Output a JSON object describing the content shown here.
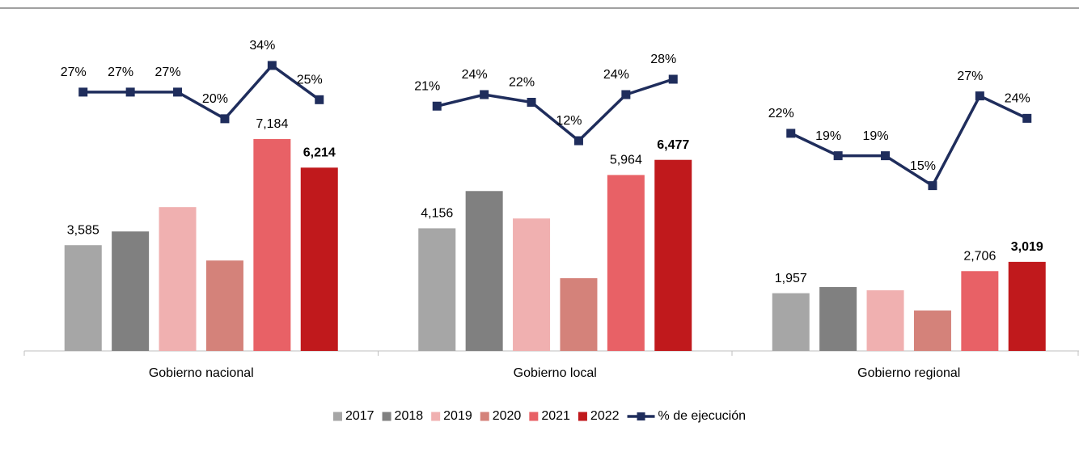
{
  "chart_data": {
    "type": "bar",
    "categories": [
      "Gobierno nacional",
      "Gobierno local",
      "Gobierno regional"
    ],
    "ylim": [
      0,
      10800
    ],
    "y2lim": [
      [
        -41,
        42.7
      ],
      [
        -42.7,
        40.2
      ],
      [
        -7.1,
        35.5
      ]
    ],
    "series": [
      {
        "name": "2017",
        "color": "#a6a6a6",
        "values": [
          3585,
          4156,
          1957
        ],
        "value_labels": [
          "3,585",
          "4,156",
          "1,957"
        ]
      },
      {
        "name": "2018",
        "color": "#808080",
        "values": [
          4050,
          5420,
          2165
        ]
      },
      {
        "name": "2019",
        "color": "#f0b0b0",
        "values": [
          4875,
          4490,
          2055
        ]
      },
      {
        "name": "2020",
        "color": "#d4827a",
        "values": [
          3065,
          2465,
          1370
        ]
      },
      {
        "name": "2021",
        "color": "#e86166",
        "values": [
          7184,
          5964,
          2706
        ],
        "value_labels": [
          "7,184",
          "5,964",
          "2,706"
        ]
      },
      {
        "name": "2022",
        "color": "#c0191c",
        "values": [
          6214,
          6477,
          3019
        ],
        "value_labels": [
          "6,214",
          "6,477",
          "3,019"
        ],
        "bold_labels": true
      },
      {
        "name": "% de ejecución",
        "type": "line",
        "axis": "y2",
        "color": "#1f2d5c",
        "values": [
          [
            27,
            27,
            27,
            20,
            34,
            25
          ],
          [
            21,
            24,
            22,
            12,
            24,
            28
          ],
          [
            22,
            19,
            19,
            15,
            27,
            24
          ]
        ],
        "value_labels": [
          [
            "27%",
            "27%",
            "27%",
            "20%",
            "34%",
            "25%"
          ],
          [
            "21%",
            "24%",
            "22%",
            "12%",
            "24%",
            "28%"
          ],
          [
            "22%",
            "19%",
            "19%",
            "15%",
            "27%",
            "24%"
          ]
        ]
      }
    ],
    "legend": "bottom"
  }
}
